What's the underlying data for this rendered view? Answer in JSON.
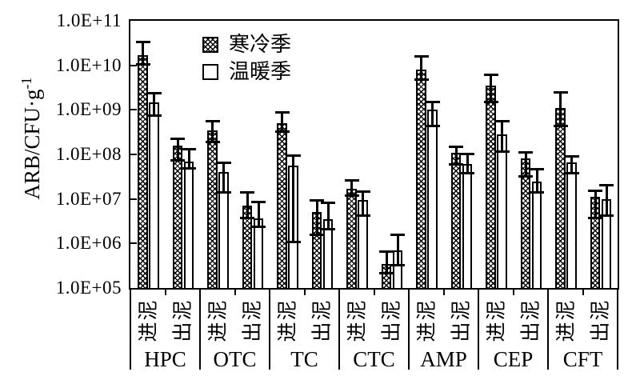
{
  "figure": {
    "ylabel": {
      "text": "ARB/CFU·g",
      "sup": "-1"
    }
  },
  "chart_data": {
    "type": "bar",
    "scale": "log-y",
    "title": "",
    "xlabel": "",
    "ylabel": "ARB/CFU·g⁻¹",
    "ylim": [
      100000.0,
      100000000000.0
    ],
    "grid": false,
    "legend_position": "top-left-inside",
    "yticks": [
      {
        "exp": 11,
        "label": "1.0E+11"
      },
      {
        "exp": 10,
        "label": "1.0E+10"
      },
      {
        "exp": 9,
        "label": "1.0E+09"
      },
      {
        "exp": 8,
        "label": "1.0E+08"
      },
      {
        "exp": 7,
        "label": "1.0E+07"
      },
      {
        "exp": 6,
        "label": "1.0E+06"
      },
      {
        "exp": 5,
        "label": "1.0E+05"
      }
    ],
    "categories": [
      "HPC",
      "OTC",
      "TC",
      "CTC",
      "AMP",
      "CEP",
      "CFT"
    ],
    "subcategories": [
      "进泥",
      "出泥"
    ],
    "series": [
      {
        "name": "寒冷季",
        "pattern": "crosshatch"
      },
      {
        "name": "温暖季",
        "pattern": "open"
      }
    ],
    "error_bars": true,
    "groups": [
      {
        "category": "HPC",
        "bars": [
          {
            "sub": "进泥",
            "series": [
              {
                "name": "寒冷季",
                "v": 17000000000.0,
                "lo": 10000000000.0,
                "hi": 35000000000.0
              },
              {
                "name": "温暖季",
                "v": 1500000000.0,
                "lo": 700000000.0,
                "hi": 2500000000.0
              }
            ]
          },
          {
            "sub": "出泥",
            "series": [
              {
                "name": "寒冷季",
                "v": 160000000.0,
                "lo": 70000000.0,
                "hi": 240000000.0
              },
              {
                "name": "温暖季",
                "v": 70000000.0,
                "lo": 45000000.0,
                "hi": 140000000.0
              }
            ]
          }
        ]
      },
      {
        "category": "OTC",
        "bars": [
          {
            "sub": "进泥",
            "series": [
              {
                "name": "寒冷季",
                "v": 350000000.0,
                "lo": 180000000.0,
                "hi": 600000000.0
              },
              {
                "name": "温暖季",
                "v": 40000000.0,
                "lo": 13000000.0,
                "hi": 70000000.0
              }
            ]
          },
          {
            "sub": "出泥",
            "series": [
              {
                "name": "寒冷季",
                "v": 7000000.0,
                "lo": 3500000.0,
                "hi": 15000000.0
              },
              {
                "name": "温暖季",
                "v": 3600000.0,
                "lo": 2200000.0,
                "hi": 9000000.0
              }
            ]
          }
        ]
      },
      {
        "category": "TC",
        "bars": [
          {
            "sub": "进泥",
            "series": [
              {
                "name": "寒冷季",
                "v": 500000000.0,
                "lo": 300000000.0,
                "hi": 950000000.0
              },
              {
                "name": "温暖季",
                "v": 55000000.0,
                "lo": 1000000.0,
                "hi": 100000000.0
              }
            ]
          },
          {
            "sub": "出泥",
            "series": [
              {
                "name": "寒冷季",
                "v": 5000000.0,
                "lo": 1500000.0,
                "hi": 10000000.0
              },
              {
                "name": "温暖季",
                "v": 3500000.0,
                "lo": 2000000.0,
                "hi": 8700000.0
              }
            ]
          }
        ]
      },
      {
        "category": "CTC",
        "bars": [
          {
            "sub": "进泥",
            "series": [
              {
                "name": "寒冷季",
                "v": 17000000.0,
                "lo": 11000000.0,
                "hi": 28000000.0
              },
              {
                "name": "温暖季",
                "v": 9500000.0,
                "lo": 4000000.0,
                "hi": 15500000.0
              }
            ]
          },
          {
            "sub": "出泥",
            "series": [
              {
                "name": "寒冷季",
                "v": 350000.0,
                "lo": 200000.0,
                "hi": 700000.0
              },
              {
                "name": "温暖季",
                "v": 700000.0,
                "lo": 300000.0,
                "hi": 1700000.0
              }
            ]
          }
        ]
      },
      {
        "category": "AMP",
        "bars": [
          {
            "sub": "进泥",
            "series": [
              {
                "name": "寒冷季",
                "v": 8000000000.0,
                "lo": 4500000000.0,
                "hi": 17000000000.0
              },
              {
                "name": "温暖季",
                "v": 1000000000.0,
                "lo": 400000000.0,
                "hi": 1600000000.0
              }
            ]
          },
          {
            "sub": "出泥",
            "series": [
              {
                "name": "寒冷季",
                "v": 110000000.0,
                "lo": 55000000.0,
                "hi": 160000000.0
              },
              {
                "name": "温暖季",
                "v": 60000000.0,
                "lo": 35000000.0,
                "hi": 110000000.0
              }
            ]
          }
        ]
      },
      {
        "category": "CEP",
        "bars": [
          {
            "sub": "进泥",
            "series": [
              {
                "name": "寒冷季",
                "v": 3500000000.0,
                "lo": 1400000000.0,
                "hi": 6500000000.0
              },
              {
                "name": "温暖季",
                "v": 280000000.0,
                "lo": 110000000.0,
                "hi": 600000000.0
              }
            ]
          },
          {
            "sub": "出泥",
            "series": [
              {
                "name": "寒冷季",
                "v": 80000000.0,
                "lo": 30000000.0,
                "hi": 120000000.0
              },
              {
                "name": "温暖季",
                "v": 25000000.0,
                "lo": 13000000.0,
                "hi": 50000000.0
              }
            ]
          }
        ]
      },
      {
        "category": "CFT",
        "bars": [
          {
            "sub": "进泥",
            "series": [
              {
                "name": "寒冷季",
                "v": 1100000000.0,
                "lo": 400000000.0,
                "hi": 2600000000.0
              },
              {
                "name": "温暖季",
                "v": 65000000.0,
                "lo": 35000000.0,
                "hi": 95000000.0
              }
            ]
          },
          {
            "sub": "出泥",
            "series": [
              {
                "name": "寒冷季",
                "v": 11000000.0,
                "lo": 3500000.0,
                "hi": 16000000.0
              },
              {
                "name": "温暖季",
                "v": 10000000.0,
                "lo": 4000000.0,
                "hi": 22000000.0
              }
            ]
          }
        ]
      }
    ]
  }
}
